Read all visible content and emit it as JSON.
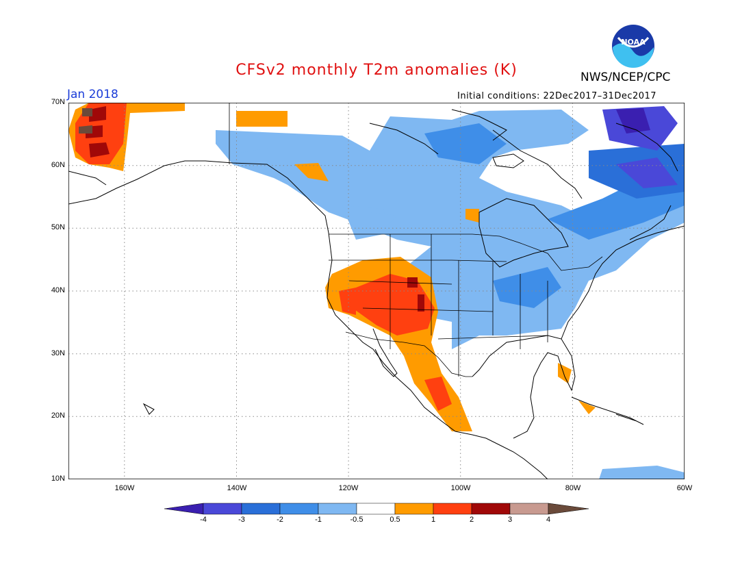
{
  "title": "CFSv2 monthly T2m anomalies (K)",
  "agency": "NWS/NCEP/CPC",
  "logo_text": "NOAA",
  "valid_month": "Jan 2018",
  "initial_conditions": "Initial conditions: 22Dec2017–31Dec2017",
  "map": {
    "lon_range": [
      -170,
      -60
    ],
    "lat_range": [
      10,
      70
    ],
    "lat_labels": [
      "10N",
      "20N",
      "30N",
      "40N",
      "50N",
      "60N",
      "70N"
    ],
    "lon_labels": [
      "160W",
      "140W",
      "120W",
      "100W",
      "80W",
      "60W"
    ],
    "gridlines": "dotted"
  },
  "colorbar": {
    "labels": [
      "-4",
      "-3",
      "-2",
      "-1",
      "-0.5",
      "0.5",
      "1",
      "2",
      "3",
      "4"
    ],
    "colors": [
      "#3a1fb0",
      "#4a48d8",
      "#2a6fd8",
      "#3f8ee8",
      "#7fb8f2",
      "#ffffff",
      "#ff9b00",
      "#ff4010",
      "#a00808",
      "#c89a90",
      "#6a4a3a"
    ],
    "low_arrow_color": "#3a1fb0",
    "high_arrow_color": "#6a4a3a"
  },
  "colors": {
    "title": "#e01010",
    "month": "#1a3cd8"
  }
}
